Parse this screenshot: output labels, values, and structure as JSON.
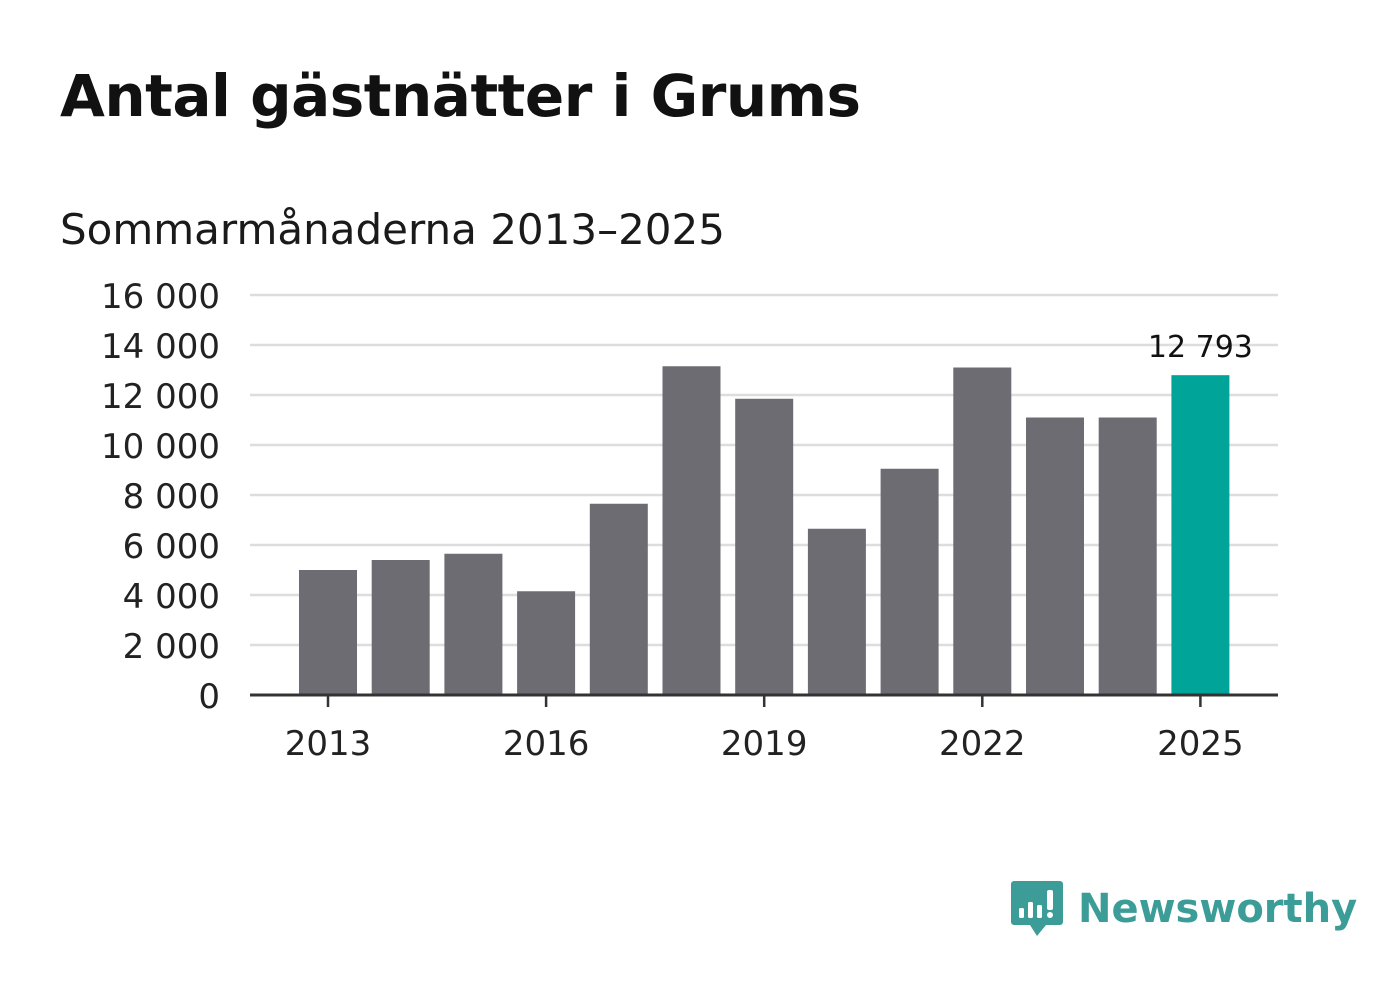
{
  "header": {
    "title": "Antal gästnätter i Grums",
    "subtitle": "Sommarmånaderna 2013–2025"
  },
  "logo": {
    "name": "Newsworthy",
    "icon": "bar-chart-speech-bubble-icon",
    "color": "#3c9c97"
  },
  "colors": {
    "bar": "#6d6c72",
    "highlight": "#00a499",
    "grid": "#dddddd",
    "axis": "#333333"
  },
  "chart_data": {
    "type": "bar",
    "title": "Antal gästnätter i Grums",
    "subtitle": "Sommarmånaderna 2013–2025",
    "xlabel": "",
    "ylabel": "",
    "categories": [
      "2013",
      "2014",
      "2015",
      "2016",
      "2017",
      "2018",
      "2019",
      "2020",
      "2021",
      "2022",
      "2023",
      "2024",
      "2025"
    ],
    "values": [
      5000,
      5400,
      5650,
      4150,
      7650,
      13150,
      11850,
      6650,
      9050,
      13100,
      11100,
      11100,
      12793
    ],
    "ylim": [
      0,
      16000
    ],
    "yticks": [
      0,
      2000,
      4000,
      6000,
      8000,
      10000,
      12000,
      14000,
      16000
    ],
    "ytick_labels": [
      "0",
      "2 000",
      "4 000",
      "6 000",
      "8 000",
      "10 000",
      "12 000",
      "14 000",
      "16 000"
    ],
    "xtick_labels": [
      "2013",
      "2016",
      "2019",
      "2022",
      "2025"
    ],
    "highlight_index": 12,
    "annotation": {
      "index": 12,
      "text": "12 793"
    },
    "grid": true,
    "legend": "none"
  }
}
